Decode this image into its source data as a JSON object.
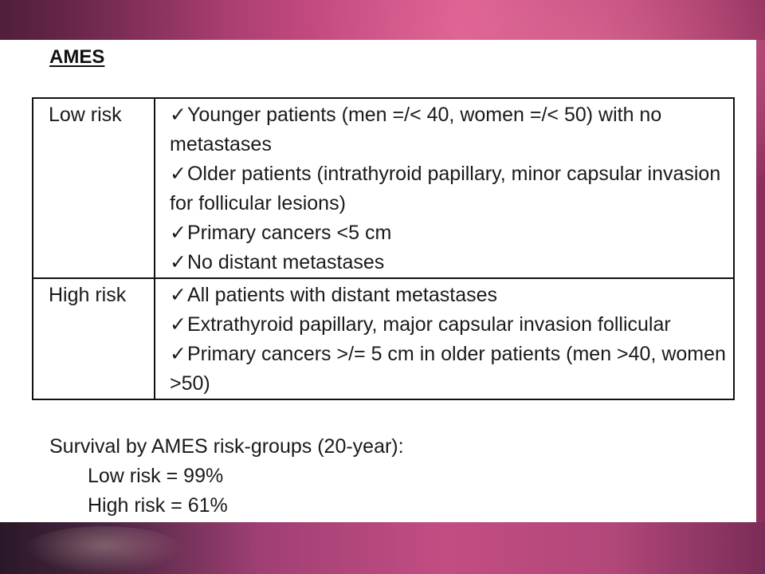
{
  "slide": {
    "heading": "AMES",
    "table": {
      "rows": [
        {
          "group": "Low risk",
          "criteria": [
            {
              "check": "✓",
              "text": "Younger patients (men =/< 40, women =/< 50) with no metastases"
            },
            {
              "check": "✓",
              "text": "Older patients (intrathyroid papillary, minor capsular invasion for follicular lesions)"
            },
            {
              "check": "✓",
              "text": "Primary cancers <5 cm"
            },
            {
              "check": "✓",
              "text": "No distant metastases"
            }
          ]
        },
        {
          "group": "High risk",
          "criteria": [
            {
              "check": "✓",
              "text": "All patients with distant metastases"
            },
            {
              "check": "✓",
              "text": "Extrathyroid papillary, major capsular invasion follicular"
            },
            {
              "check": "✓",
              "text": "Primary cancers >/= 5 cm in older patients   (men >40, women >50)"
            }
          ]
        }
      ]
    },
    "survival": {
      "title": "Survival by AMES risk-groups (20-year):",
      "items": [
        "Low risk = 99%",
        "High risk = 61%"
      ]
    }
  }
}
